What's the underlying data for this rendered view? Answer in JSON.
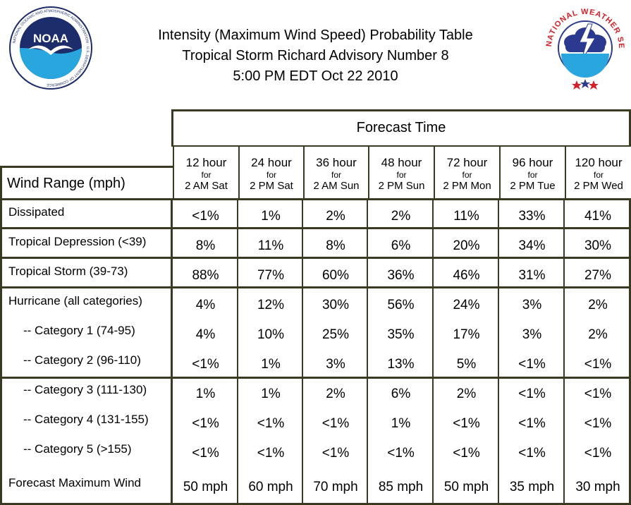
{
  "header": {
    "title_line1": "Intensity (Maximum Wind Speed) Probability Table",
    "title_line2": "Tropical Storm Richard Advisory Number 8",
    "title_line3": "5:00 PM EDT Oct 22 2010",
    "noaa_logo": {
      "label": "NOAA",
      "ring_text": "NATIONAL OCEANIC AND ATMOSPHERIC ADMINISTRATION · U.S. DEPARTMENT OF COMMERCE",
      "icon": "noaa-seagull-emblem",
      "colors": {
        "dark_blue": "#1d2d6b",
        "light_blue": "#2aa6de"
      }
    },
    "nws_logo": {
      "ring_text": "NATIONAL WEATHER SERVICE",
      "icon": "cloud-lightning-emblem",
      "colors": {
        "red": "#d42027",
        "blue": "#2b3a8f"
      }
    }
  },
  "table": {
    "forecast_time_label": "Forecast Time",
    "wind_range_label": "Wind Range (mph)",
    "columns": [
      {
        "hour": "12 hour",
        "for": "for",
        "date": "2 AM Sat"
      },
      {
        "hour": "24 hour",
        "for": "for",
        "date": "2 PM Sat"
      },
      {
        "hour": "36 hour",
        "for": "for",
        "date": "2 AM Sun"
      },
      {
        "hour": "48 hour",
        "for": "for",
        "date": "2 PM Sun"
      },
      {
        "hour": "72 hour",
        "for": "for",
        "date": "2 PM Mon"
      },
      {
        "hour": "96 hour",
        "for": "for",
        "date": "2 PM Tue"
      },
      {
        "hour": "120 hour",
        "for": "for",
        "date": "2 PM Wed"
      }
    ],
    "rows": [
      {
        "label": "Dissipated",
        "values": [
          "<1%",
          "1%",
          "2%",
          "2%",
          "11%",
          "33%",
          "41%"
        ]
      },
      {
        "label": "Tropical Depression (<39)",
        "values": [
          "8%",
          "11%",
          "8%",
          "6%",
          "20%",
          "34%",
          "30%"
        ]
      },
      {
        "label": "Tropical Storm (39-73)",
        "values": [
          "88%",
          "77%",
          "60%",
          "36%",
          "46%",
          "31%",
          "27%"
        ]
      },
      {
        "label": "Hurricane (all categories)",
        "values": [
          "4%",
          "12%",
          "30%",
          "56%",
          "24%",
          "3%",
          "2%"
        ]
      },
      {
        "label": "-- Category 1 (74-95)",
        "values": [
          "4%",
          "10%",
          "25%",
          "35%",
          "17%",
          "3%",
          "2%"
        ]
      },
      {
        "label": "-- Category 2 (96-110)",
        "values": [
          "<1%",
          "1%",
          "3%",
          "13%",
          "5%",
          "<1%",
          "<1%"
        ]
      },
      {
        "label": "-- Category 3 (111-130)",
        "values": [
          "1%",
          "1%",
          "2%",
          "6%",
          "2%",
          "<1%",
          "<1%"
        ]
      },
      {
        "label": "-- Category 4 (131-155)",
        "values": [
          "<1%",
          "<1%",
          "<1%",
          "1%",
          "<1%",
          "<1%",
          "<1%"
        ]
      },
      {
        "label": "-- Category 5 (>155)",
        "values": [
          "<1%",
          "<1%",
          "<1%",
          "<1%",
          "<1%",
          "<1%",
          "<1%"
        ]
      },
      {
        "label": "Forecast Maximum Wind",
        "values": [
          "50 mph",
          "60 mph",
          "70 mph",
          "85 mph",
          "50 mph",
          "35 mph",
          "30 mph"
        ]
      }
    ],
    "border_color": "#3a3a22"
  }
}
